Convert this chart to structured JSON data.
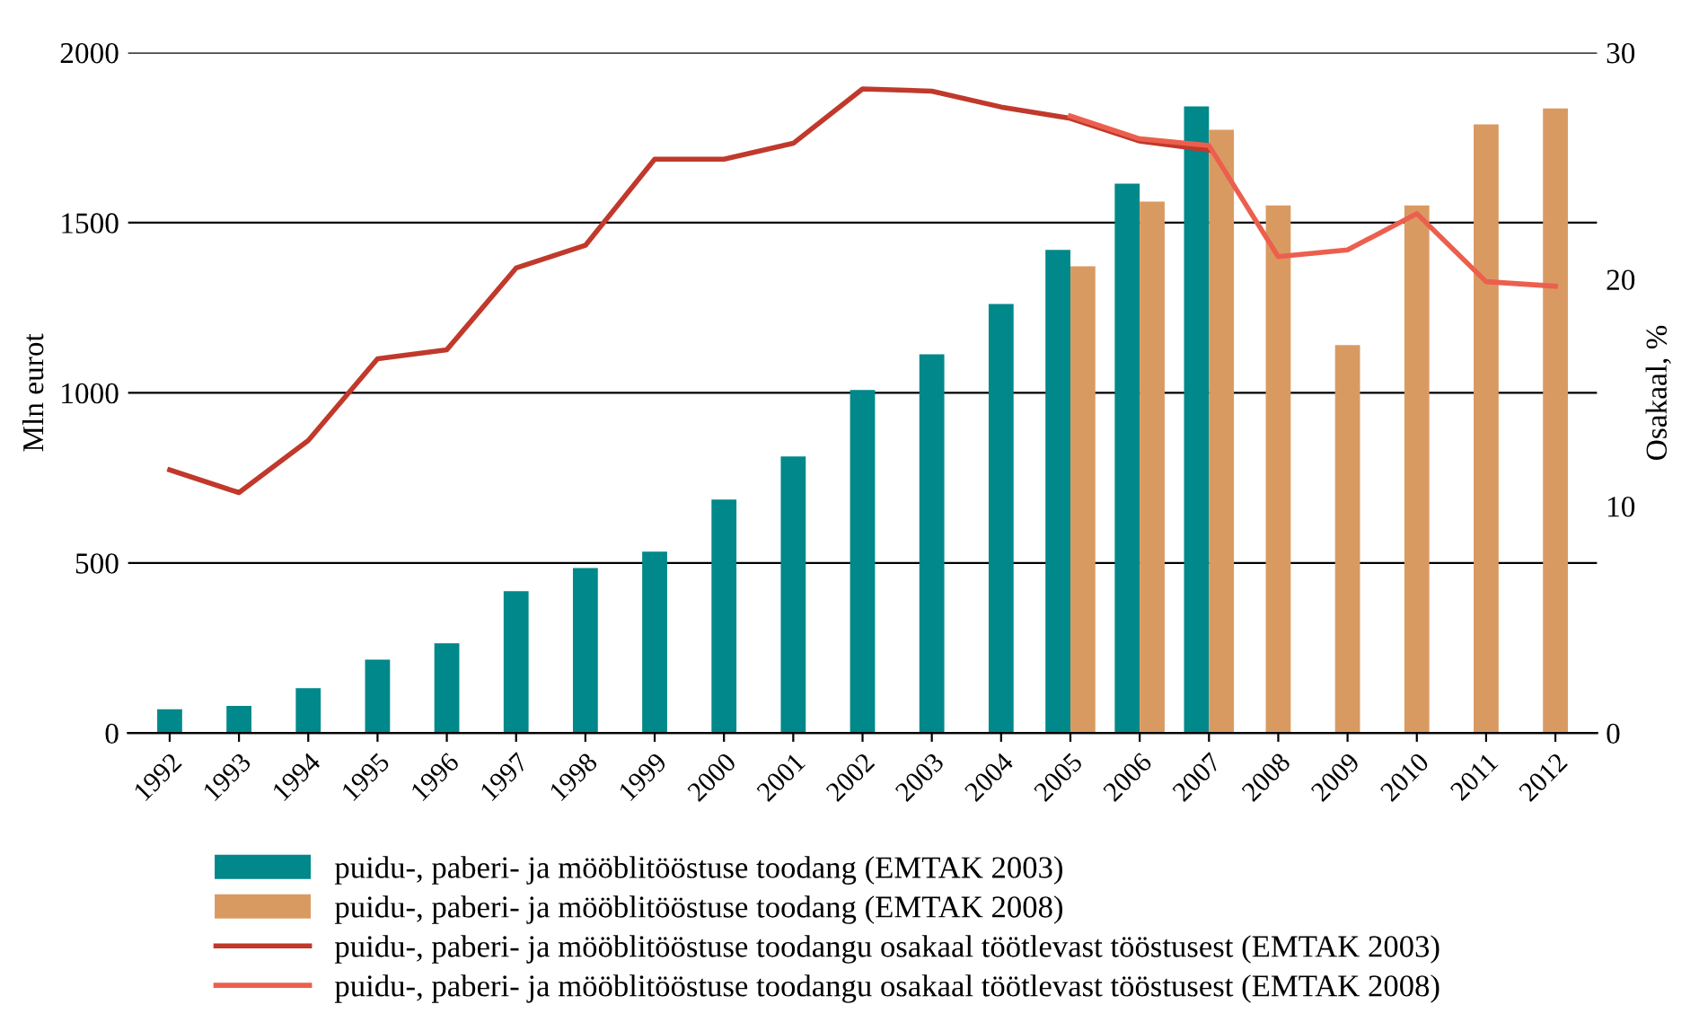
{
  "chart_data": {
    "type": "bar",
    "ylabel": "Mln eurot",
    "y2label": "Osakaal, %",
    "categories": [
      "1992",
      "1993",
      "1994",
      "1995",
      "1996",
      "1997",
      "1998",
      "1999",
      "2000",
      "2001",
      "2002",
      "2003",
      "2004",
      "2005",
      "2006",
      "2007",
      "2008",
      "2009",
      "2010",
      "2011",
      "2012"
    ],
    "series": [
      {
        "name": "puidu-, paberi- ja mööblitööstuse toodang (EMTAK 2003)",
        "color": "#00888a",
        "values": [
          70,
          80,
          132,
          216,
          264,
          417,
          485,
          533,
          686,
          813,
          1008,
          1113,
          1261,
          1420,
          1615,
          1842,
          null,
          null,
          null,
          null,
          null
        ]
      },
      {
        "name": "puidu-, paberi- ja mööblitööstuse toodang (EMTAK 2008)",
        "color": "#d99a62",
        "values": [
          null,
          null,
          null,
          null,
          null,
          null,
          null,
          null,
          null,
          null,
          null,
          null,
          null,
          1372,
          1562,
          1773,
          1551,
          1140,
          1551,
          1789,
          1836
        ]
      },
      {
        "name": "puidu-, paberi- ja mööblitööstuse toodangu osakaal töötlevast tööstusest (EMTAK 2003)",
        "type": "line",
        "axis": "y2",
        "color": "#c0392b",
        "values": [
          11.6,
          10.6,
          12.9,
          16.5,
          16.9,
          20.5,
          21.5,
          25.3,
          25.3,
          26.0,
          28.4,
          28.3,
          27.6,
          27.1,
          26.1,
          25.7,
          null,
          null,
          null,
          null,
          null
        ]
      },
      {
        "name": "puidu-, paberi- ja mööblitööstuse toodangu osakaal töötlevast tööstusest (EMTAK 2008)",
        "type": "line",
        "axis": "y2",
        "color": "#ec5f4e",
        "values": [
          null,
          null,
          null,
          null,
          null,
          null,
          null,
          null,
          null,
          null,
          null,
          null,
          null,
          27.2,
          26.2,
          25.9,
          21.0,
          21.3,
          22.9,
          19.9,
          19.7
        ]
      }
    ],
    "ylim": [
      0,
      2000
    ],
    "yticks": [
      0,
      500,
      1000,
      1500,
      2000
    ],
    "y2lim": [
      0,
      30
    ],
    "y2ticks": [
      0,
      10,
      20,
      30
    ],
    "grid": "y",
    "legend": "bottom",
    "marker": "none",
    "line_style": "solid"
  }
}
